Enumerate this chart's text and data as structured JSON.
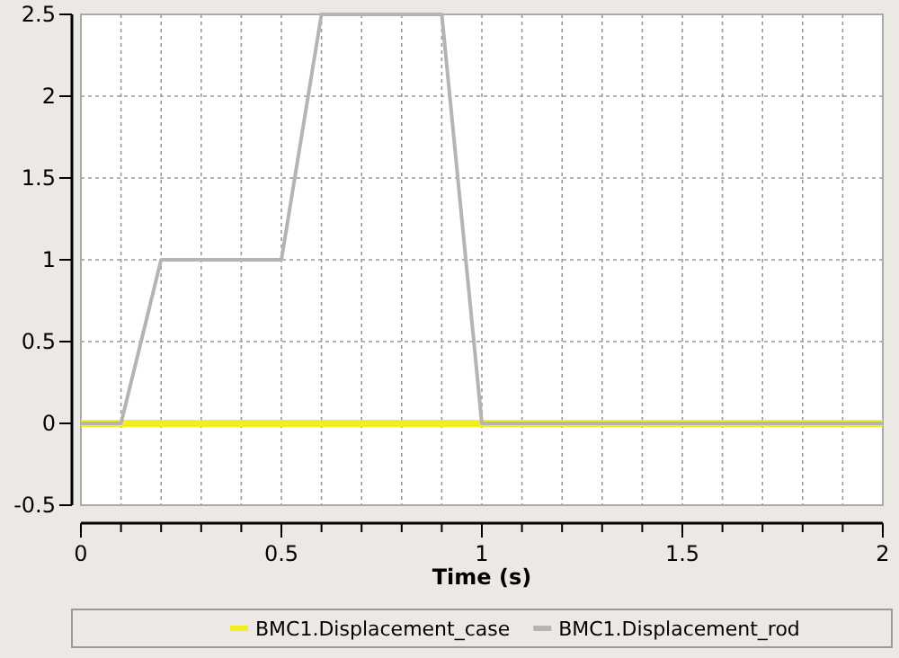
{
  "chart_data": {
    "type": "line",
    "xlabel": "Time (s)",
    "xlim": [
      0,
      2
    ],
    "xticks": [
      0,
      {
        "value": 0.1,
        "label": null
      },
      {
        "value": 0.2,
        "label": null
      },
      {
        "value": 0.3,
        "label": null
      },
      {
        "value": 0.4,
        "label": null
      },
      0.5,
      {
        "value": 0.6,
        "label": null
      },
      {
        "value": 0.7,
        "label": null
      },
      {
        "value": 0.8,
        "label": null
      },
      {
        "value": 0.9,
        "label": null
      },
      1,
      {
        "value": 1.1,
        "label": null
      },
      {
        "value": 1.2,
        "label": null
      },
      {
        "value": 1.3,
        "label": null
      },
      {
        "value": 1.4,
        "label": null
      },
      1.5,
      {
        "value": 1.6,
        "label": null
      },
      {
        "value": 1.7,
        "label": null
      },
      {
        "value": 1.8,
        "label": null
      },
      {
        "value": 1.9,
        "label": null
      },
      2
    ],
    "ylim": [
      -0.5,
      2.5
    ],
    "yticks": [
      -0.5,
      0,
      0.5,
      1,
      1.5,
      2,
      2.5
    ],
    "grid": true,
    "legend": "bottom",
    "line_style": "solid",
    "marker": "none",
    "series": [
      {
        "name": "BMC1.Displacement_case",
        "color": "#f0f020",
        "x": [
          0,
          2
        ],
        "values": [
          0,
          0
        ]
      },
      {
        "name": "BMC1.Displacement_rod",
        "color": "#b4b4b4",
        "x": [
          0,
          0.1,
          0.2,
          0.5,
          0.6,
          0.9,
          1,
          2
        ],
        "values": [
          0,
          0,
          1,
          1,
          2.5,
          2.5,
          0,
          0
        ]
      }
    ]
  }
}
